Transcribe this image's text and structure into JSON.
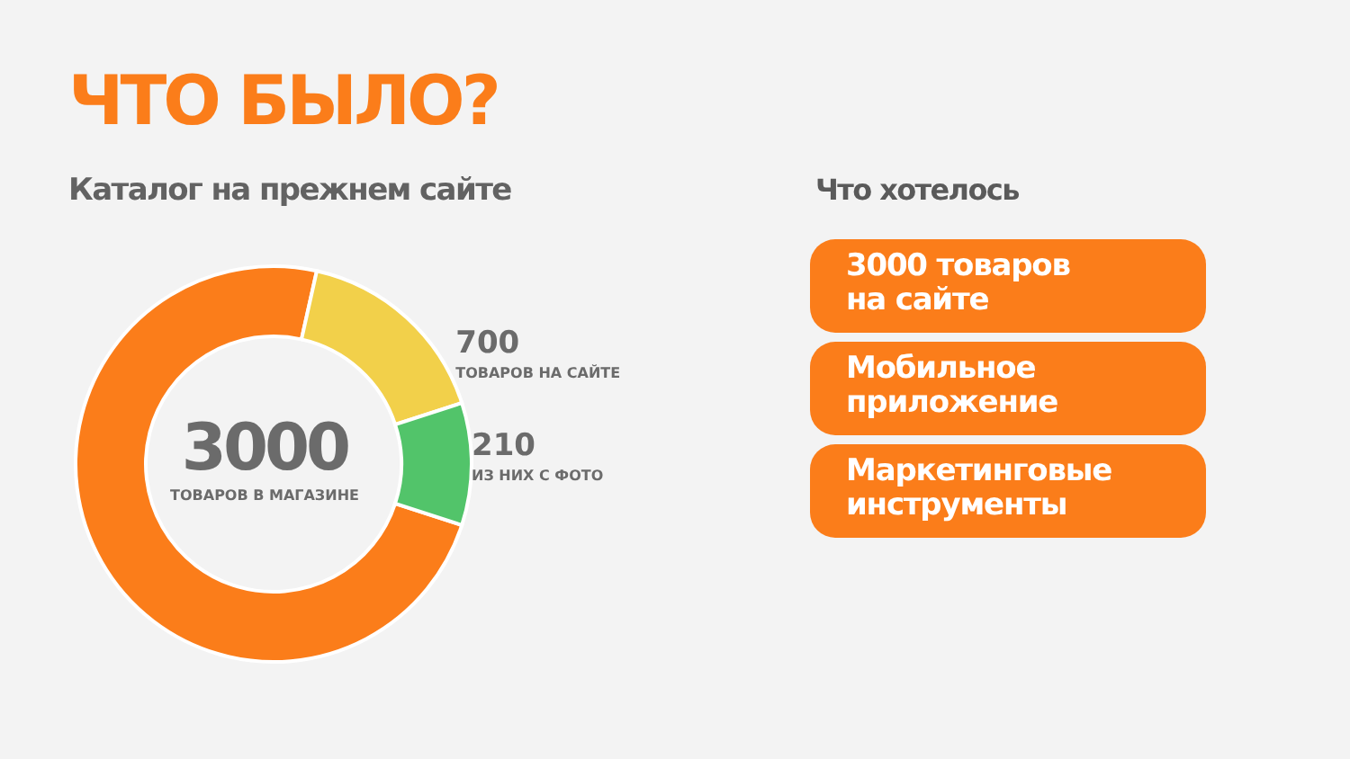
{
  "chart_data": [
    {
      "type": "donut",
      "title": "ЧТО БЫЛО?",
      "subtitle": "Каталог на прежнем сайте",
      "categories": [
        "ТОВАРОВ В МАГАЗИНЕ",
        "ТОВАРОВ НА САЙТЕ",
        "ИЗ НИХ С ФОТО"
      ],
      "values": [
        73.5,
        16.5,
        10
      ],
      "annotations": [
        "3000",
        "700",
        "210"
      ],
      "colors": [
        "#fb7d1a",
        "#f2d04a",
        "#52c46a"
      ],
      "legend": false
    },
    {
      "type": "other",
      "title": "Что хотелось",
      "annotations": [
        "3000 товаров на сайте",
        "Мобильное приложение",
        "Маркетинговые инструменты"
      ]
    }
  ]
}
